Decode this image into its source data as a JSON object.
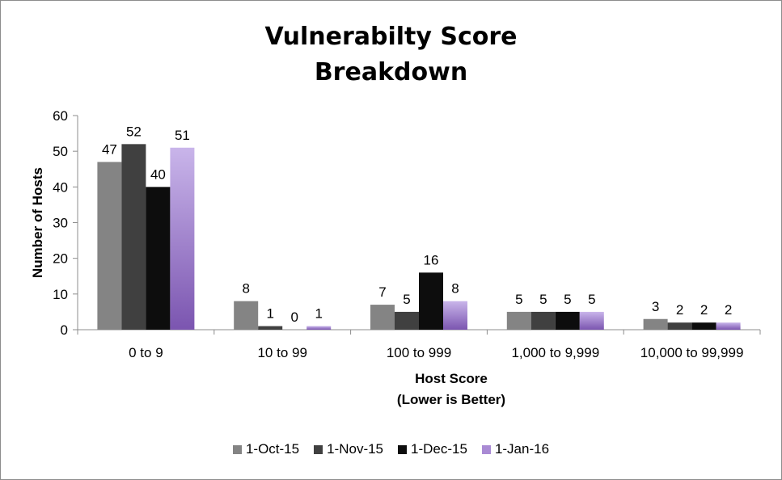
{
  "chart_data": {
    "type": "bar",
    "title_lines": [
      "Vulnerabilty Score",
      "Breakdown"
    ],
    "xlabel_lines": [
      "Host Score",
      "(Lower is Better)"
    ],
    "ylabel": "Number of Hosts",
    "ylim": [
      0,
      60
    ],
    "yticks": [
      0,
      10,
      20,
      30,
      40,
      50,
      60
    ],
    "categories": [
      "0 to 9",
      "10 to 99",
      "100 to 999",
      "1,000 to 9,999",
      "10,000 to 99,999"
    ],
    "series": [
      {
        "name": "1-Oct-15",
        "color": "#848484",
        "values": [
          47,
          8,
          7,
          5,
          3
        ]
      },
      {
        "name": "1-Nov-15",
        "color": "#404040",
        "values": [
          52,
          1,
          5,
          5,
          2
        ]
      },
      {
        "name": "1-Dec-15",
        "color": "#0d0d0d",
        "values": [
          40,
          0,
          16,
          5,
          2
        ]
      },
      {
        "name": "1-Jan-16",
        "color": "#9b7fc6",
        "values": [
          51,
          1,
          8,
          5,
          2
        ]
      }
    ],
    "grid": false,
    "legend": "bottom"
  }
}
